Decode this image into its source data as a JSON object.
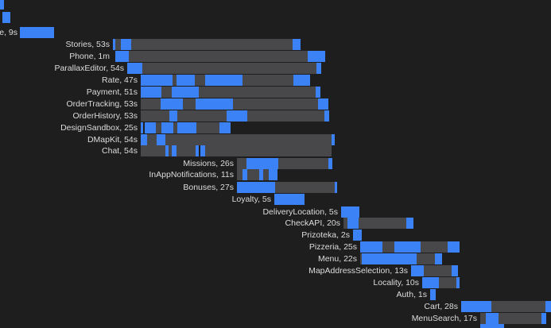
{
  "timeline": {
    "rows": [
      {
        "label": "e, 9s"
      },
      {
        "label": "Stories, 53s"
      },
      {
        "label": "Phone, 1m"
      },
      {
        "label": "ParallaxEditor, 54s"
      },
      {
        "label": "Rate, 47s"
      },
      {
        "label": "Payment, 51s"
      },
      {
        "label": "OrderTracking, 53s"
      },
      {
        "label": "OrderHistory, 53s"
      },
      {
        "label": "DesignSandbox, 25s"
      },
      {
        "label": "DMapKit, 54s"
      },
      {
        "label": "Chat, 54s"
      },
      {
        "label": "Missions, 26s"
      },
      {
        "label": "InAppNotifications, 11s"
      },
      {
        "label": "Bonuses, 27s"
      },
      {
        "label": "Loyalty, 5s"
      },
      {
        "label": "DeliveryLocation, 5s"
      },
      {
        "label": "CheckAPI, 20s"
      },
      {
        "label": "Prizoteka, 2s"
      },
      {
        "label": "Pizzeria, 25s"
      },
      {
        "label": "Menu, 22s"
      },
      {
        "label": "MapAddressSelection, 13s"
      },
      {
        "label": "Locality, 10s"
      },
      {
        "label": "Auth, 1s"
      },
      {
        "label": "Cart, 28s"
      },
      {
        "label": "MenuSearch, 17s"
      }
    ]
  }
}
